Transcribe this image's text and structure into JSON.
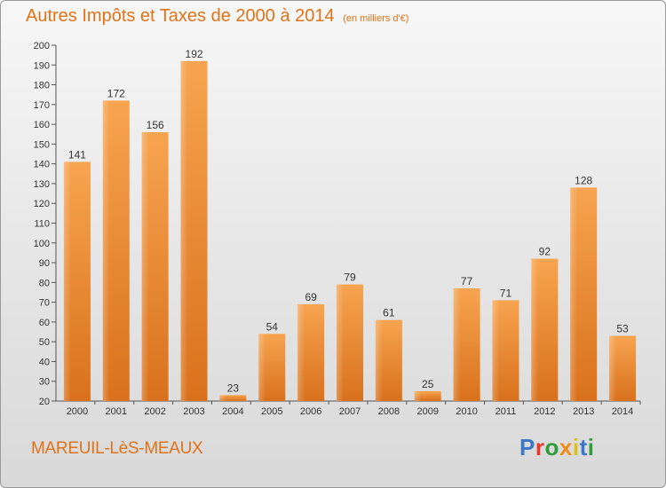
{
  "chart_data": {
    "type": "bar",
    "title": "Autres Impôts et Taxes de 2000 à 2014",
    "subtitle": "(en milliers d'€)",
    "categories": [
      "2000",
      "2001",
      "2002",
      "2003",
      "2004",
      "2005",
      "2006",
      "2007",
      "2008",
      "2009",
      "2010",
      "2011",
      "2012",
      "2013",
      "2014"
    ],
    "values": [
      141,
      172,
      156,
      192,
      23,
      54,
      69,
      79,
      61,
      25,
      77,
      71,
      92,
      128,
      53
    ],
    "ylim": [
      20,
      200
    ],
    "yticks": [
      20,
      30,
      40,
      50,
      60,
      70,
      80,
      90,
      100,
      110,
      120,
      130,
      140,
      150,
      160,
      170,
      180,
      190,
      200
    ],
    "grid": false,
    "bar_color": "#f08c2e"
  },
  "footer": {
    "commune": "MAREUIL-LèS-MEAUX",
    "logo_letters": [
      "P",
      "r",
      "o",
      "x",
      "i",
      "t",
      "i"
    ]
  }
}
